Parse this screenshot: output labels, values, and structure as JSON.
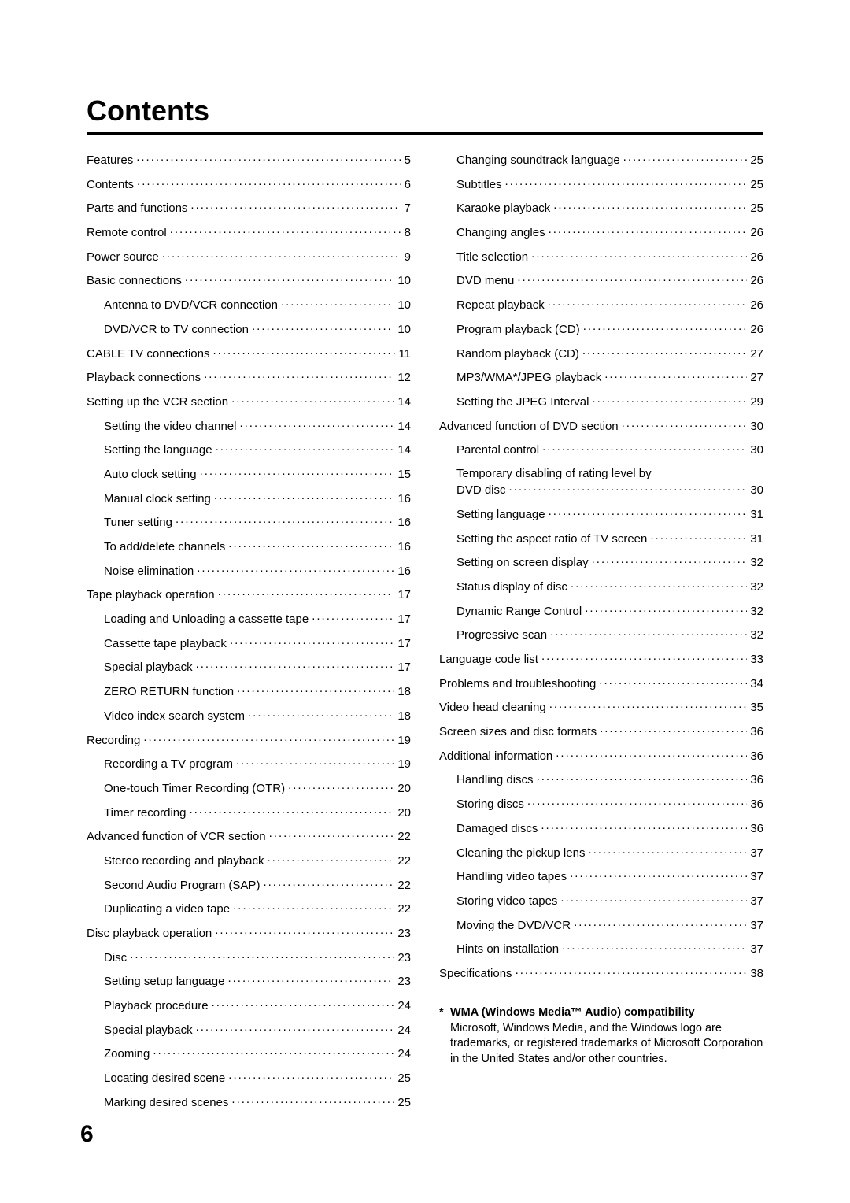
{
  "title": "Contents",
  "pageNumber": "6",
  "columns": {
    "left": [
      {
        "label": "Features",
        "page": "5",
        "indent": 0
      },
      {
        "label": "Contents",
        "page": "6",
        "indent": 0
      },
      {
        "label": "Parts and functions",
        "page": "7",
        "indent": 0
      },
      {
        "label": "Remote control",
        "page": "8",
        "indent": 0
      },
      {
        "label": "Power source",
        "page": "9",
        "indent": 0
      },
      {
        "label": "Basic connections",
        "page": "10",
        "indent": 0
      },
      {
        "label": "Antenna to DVD/VCR connection",
        "page": "10",
        "indent": 1
      },
      {
        "label": "DVD/VCR to TV connection",
        "page": "10",
        "indent": 1
      },
      {
        "label": "CABLE TV connections",
        "page": "11",
        "indent": 0
      },
      {
        "label": "Playback connections",
        "page": "12",
        "indent": 0
      },
      {
        "label": "Setting up the VCR section",
        "page": "14",
        "indent": 0
      },
      {
        "label": "Setting the video channel",
        "page": "14",
        "indent": 1
      },
      {
        "label": "Setting the language",
        "page": "14",
        "indent": 1
      },
      {
        "label": "Auto clock setting",
        "page": "15",
        "indent": 1
      },
      {
        "label": "Manual clock setting",
        "page": "16",
        "indent": 1
      },
      {
        "label": "Tuner setting",
        "page": "16",
        "indent": 1
      },
      {
        "label": "To add/delete channels",
        "page": "16",
        "indent": 1
      },
      {
        "label": "Noise elimination",
        "page": "16",
        "indent": 1
      },
      {
        "label": "Tape playback operation",
        "page": "17",
        "indent": 0
      },
      {
        "label": "Loading and Unloading a cassette tape",
        "page": "17",
        "indent": 1
      },
      {
        "label": "Cassette tape playback",
        "page": "17",
        "indent": 1
      },
      {
        "label": "Special playback",
        "page": "17",
        "indent": 1
      },
      {
        "label": "ZERO RETURN function",
        "page": "18",
        "indent": 1
      },
      {
        "label": "Video index search system",
        "page": "18",
        "indent": 1
      },
      {
        "label": "Recording",
        "page": "19",
        "indent": 0
      },
      {
        "label": "Recording a TV program",
        "page": "19",
        "indent": 1
      },
      {
        "label": "One-touch Timer Recording (OTR)",
        "page": "20",
        "indent": 1
      },
      {
        "label": "Timer recording",
        "page": "20",
        "indent": 1
      },
      {
        "label": "Advanced function of VCR section",
        "page": "22",
        "indent": 0
      },
      {
        "label": "Stereo recording and playback",
        "page": "22",
        "indent": 1
      },
      {
        "label": "Second Audio Program (SAP)",
        "page": "22",
        "indent": 1
      },
      {
        "label": "Duplicating a video tape",
        "page": "22",
        "indent": 1
      },
      {
        "label": "Disc playback operation",
        "page": "23",
        "indent": 0
      },
      {
        "label": "Disc",
        "page": "23",
        "indent": 1
      },
      {
        "label": "Setting setup language",
        "page": "23",
        "indent": 1
      },
      {
        "label": "Playback procedure",
        "page": "24",
        "indent": 1
      },
      {
        "label": "Special playback",
        "page": "24",
        "indent": 1
      },
      {
        "label": "Zooming",
        "page": "24",
        "indent": 1
      },
      {
        "label": "Locating desired scene",
        "page": "25",
        "indent": 1
      },
      {
        "label": "Marking desired scenes",
        "page": "25",
        "indent": 1
      }
    ],
    "right": [
      {
        "label": "Changing soundtrack language",
        "page": "25",
        "indent": 1
      },
      {
        "label": "Subtitles",
        "page": "25",
        "indent": 1
      },
      {
        "label": "Karaoke playback",
        "page": "25",
        "indent": 1
      },
      {
        "label": "Changing angles",
        "page": "26",
        "indent": 1
      },
      {
        "label": "Title selection",
        "page": "26",
        "indent": 1
      },
      {
        "label": "DVD menu",
        "page": "26",
        "indent": 1
      },
      {
        "label": "Repeat playback",
        "page": "26",
        "indent": 1
      },
      {
        "label": "Program playback (CD)",
        "page": "26",
        "indent": 1
      },
      {
        "label": "Random playback (CD)",
        "page": "27",
        "indent": 1
      },
      {
        "label": "MP3/WMA*/JPEG playback",
        "page": "27",
        "indent": 1
      },
      {
        "label": "Setting the JPEG Interval",
        "page": "29",
        "indent": 1
      },
      {
        "label": "Advanced function of DVD section",
        "page": "30",
        "indent": 0
      },
      {
        "label": "Parental control",
        "page": "30",
        "indent": 1
      },
      {
        "label": "Temporary disabling of rating level by DVD disc",
        "page": "30",
        "indent": 1,
        "wrap": true
      },
      {
        "label": "Setting language",
        "page": "31",
        "indent": 1
      },
      {
        "label": "Setting the aspect ratio of TV screen",
        "page": "31",
        "indent": 1
      },
      {
        "label": "Setting on screen display",
        "page": "32",
        "indent": 1
      },
      {
        "label": "Status display of disc",
        "page": "32",
        "indent": 1
      },
      {
        "label": "Dynamic Range Control",
        "page": "32",
        "indent": 1
      },
      {
        "label": "Progressive scan",
        "page": "32",
        "indent": 1
      },
      {
        "label": "Language code list",
        "page": "33",
        "indent": 0
      },
      {
        "label": "Problems and troubleshooting",
        "page": "34",
        "indent": 0
      },
      {
        "label": "Video head cleaning",
        "page": "35",
        "indent": 0
      },
      {
        "label": "Screen sizes and disc formats",
        "page": "36",
        "indent": 0
      },
      {
        "label": "Additional information",
        "page": "36",
        "indent": 0
      },
      {
        "label": "Handling discs",
        "page": "36",
        "indent": 1
      },
      {
        "label": "Storing discs",
        "page": "36",
        "indent": 1
      },
      {
        "label": "Damaged discs",
        "page": "36",
        "indent": 1
      },
      {
        "label": "Cleaning the pickup lens",
        "page": "37",
        "indent": 1
      },
      {
        "label": "Handling video tapes",
        "page": "37",
        "indent": 1
      },
      {
        "label": "Storing video tapes",
        "page": "37",
        "indent": 1
      },
      {
        "label": "Moving the DVD/VCR",
        "page": "37",
        "indent": 1
      },
      {
        "label": "Hints on installation",
        "page": "37",
        "indent": 1
      },
      {
        "label": "Specifications",
        "page": "38",
        "indent": 0
      }
    ]
  },
  "footnote": {
    "star": "*",
    "title": "WMA (Windows Media™ Audio) compatibility",
    "body": "Microsoft, Windows Media, and the Windows logo are trademarks, or registered trademarks of Microsoft Corporation in the United States and/or other countries."
  }
}
